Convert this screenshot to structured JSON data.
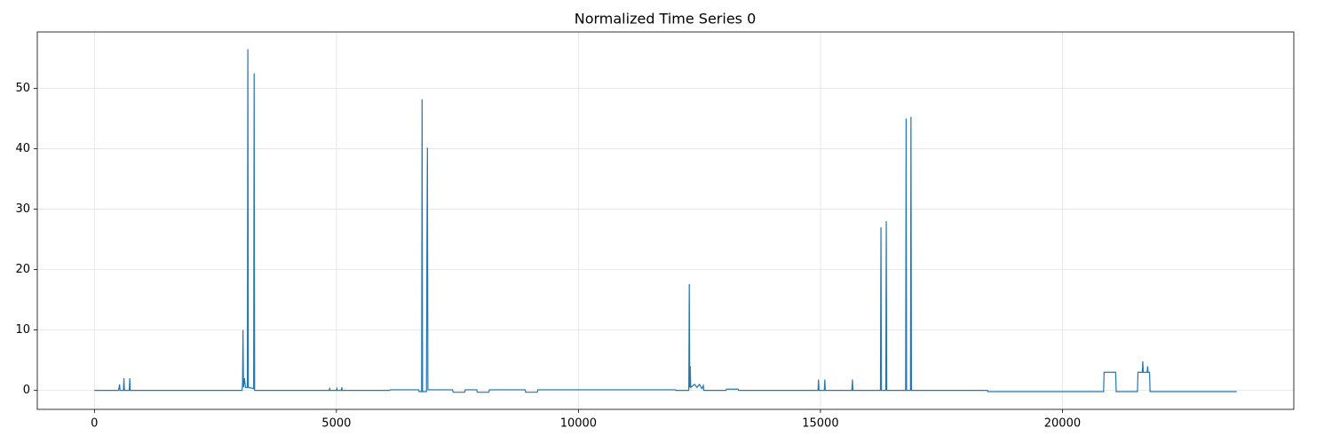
{
  "chart_data": {
    "type": "line",
    "title": "Normalized Time Series 0",
    "x": [
      0,
      500,
      520,
      530,
      600,
      610,
      620,
      720,
      730,
      740,
      3050,
      3060,
      3070,
      3080,
      3100,
      3120,
      3160,
      3170,
      3180,
      3290,
      3300,
      3310,
      4850,
      4860,
      4870,
      5000,
      5010,
      5020,
      5100,
      5110,
      5120,
      6100,
      6110,
      6700,
      6710,
      6760,
      6770,
      6780,
      6860,
      6870,
      6880,
      6890,
      7400,
      7410,
      7650,
      7660,
      7900,
      7910,
      8150,
      8160,
      8900,
      8910,
      9150,
      9160,
      12000,
      12010,
      12280,
      12290,
      12300,
      12310,
      12320,
      12400,
      12450,
      12500,
      12550,
      12580,
      12590,
      13050,
      13060,
      13300,
      13310,
      14950,
      14960,
      14970,
      15080,
      15090,
      15100,
      15650,
      15660,
      15670,
      16240,
      16250,
      16260,
      16350,
      16360,
      16370,
      16760,
      16770,
      16780,
      16860,
      16870,
      16880,
      18450,
      18460,
      20850,
      20860,
      21100,
      21110,
      21550,
      21560,
      21650,
      21660,
      21670,
      21750,
      21760,
      21770,
      21800,
      21810,
      23600
    ],
    "series": [
      {
        "color": "#1f77b4",
        "values": [
          0,
          0,
          1,
          0,
          0,
          2,
          0,
          0,
          2,
          0,
          0,
          1,
          10,
          0.5,
          2,
          0.5,
          0.5,
          56.5,
          0.5,
          0.3,
          52.5,
          0,
          0,
          0.3,
          0,
          0,
          0.3,
          0,
          0,
          0.5,
          0,
          0,
          0.1,
          0.1,
          -0.2,
          -0.2,
          48.2,
          -0.2,
          -0.2,
          25,
          40.2,
          0.1,
          0.1,
          -0.3,
          -0.3,
          0.1,
          0.1,
          -0.3,
          -0.3,
          0.1,
          0.1,
          -0.3,
          -0.3,
          0.1,
          0.1,
          0,
          0,
          17.6,
          0.5,
          4,
          0.5,
          1,
          0.5,
          1,
          0.3,
          0.8,
          0,
          0,
          0.2,
          0.2,
          0,
          0,
          1.8,
          0,
          0,
          1.8,
          0,
          0,
          1.8,
          0,
          0,
          27,
          0,
          0,
          28,
          0,
          0,
          45,
          0,
          0,
          45.3,
          0,
          0,
          -0.2,
          -0.2,
          3,
          3,
          -0.2,
          -0.2,
          3,
          3,
          4.8,
          3,
          3,
          4,
          3,
          3,
          -0.2,
          -0.2
        ]
      }
    ],
    "xlim": [
      -1180,
      24780
    ],
    "ylim": [
      -3.14,
      59.34
    ],
    "xticks": [
      0,
      5000,
      10000,
      15000,
      20000
    ],
    "yticks": [
      0,
      10,
      20,
      30,
      40,
      50
    ],
    "grid": true
  }
}
